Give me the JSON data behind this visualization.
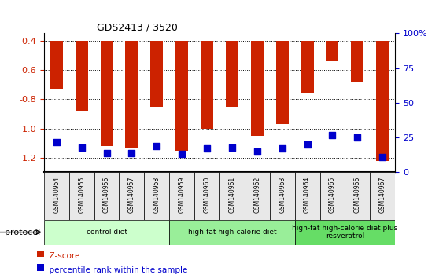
{
  "title": "GDS2413 / 3520",
  "samples": [
    "GSM140954",
    "GSM140955",
    "GSM140956",
    "GSM140957",
    "GSM140958",
    "GSM140959",
    "GSM140960",
    "GSM140961",
    "GSM140962",
    "GSM140963",
    "GSM140964",
    "GSM140965",
    "GSM140966",
    "GSM140967"
  ],
  "zscore": [
    -0.73,
    -0.88,
    -1.12,
    -1.13,
    -0.85,
    -1.15,
    -1.0,
    -0.85,
    -1.05,
    -0.97,
    -0.76,
    -0.54,
    -0.68,
    -1.22
  ],
  "percentile": [
    22,
    18,
    14,
    14,
    19,
    13,
    17,
    18,
    15,
    17,
    20,
    27,
    25,
    11
  ],
  "ylim_left": [
    -1.3,
    -0.35
  ],
  "ylim_right": [
    0,
    100
  ],
  "yticks_left": [
    -1.2,
    -1.0,
    -0.8,
    -0.6,
    -0.4
  ],
  "yticks_right": [
    0,
    25,
    50,
    75,
    100
  ],
  "groups": [
    {
      "label": "control diet",
      "start": 0,
      "end": 4,
      "color": "#ccffcc"
    },
    {
      "label": "high-fat high-calorie diet",
      "start": 5,
      "end": 9,
      "color": "#99ee99"
    },
    {
      "label": "high-fat high-calorie diet plus\nresveratrol",
      "start": 10,
      "end": 13,
      "color": "#66dd66"
    }
  ],
  "bar_color": "#cc2200",
  "dot_color": "#0000cc",
  "background_color": "#ffffff",
  "tick_label_color_left": "#cc2200",
  "tick_label_color_right": "#0000cc",
  "bar_width": 0.5,
  "dot_size": 28,
  "col_bg_color": "#e8e8e8"
}
